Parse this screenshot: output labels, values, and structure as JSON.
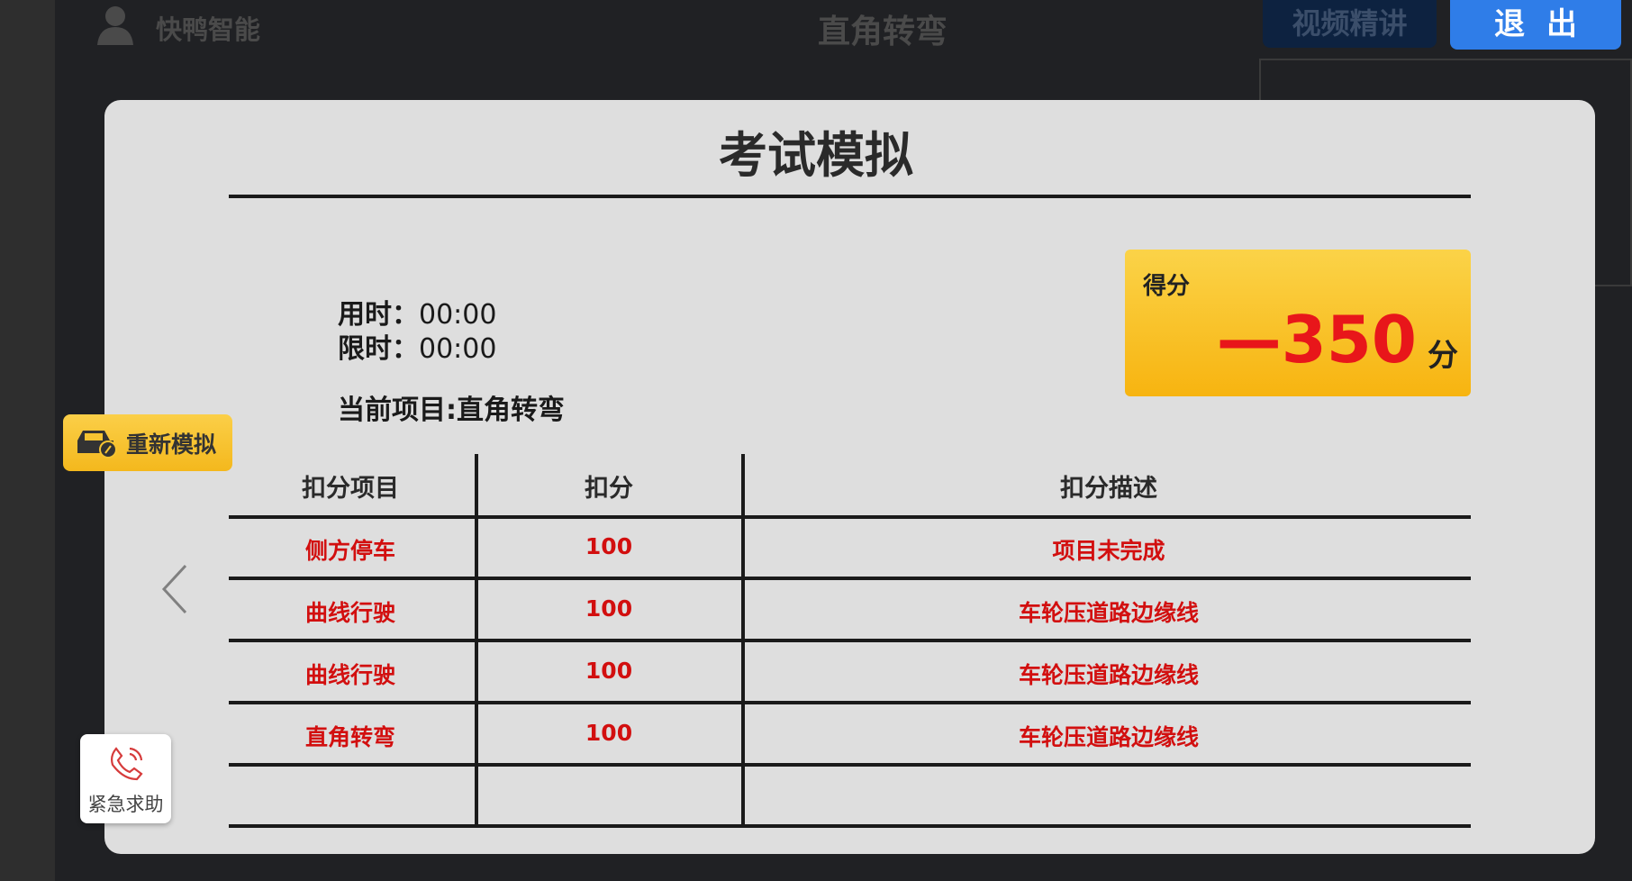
{
  "background": {
    "brand": "快鸭智能",
    "title": "直角转弯",
    "video_button": "视频精讲",
    "exit_button": "退出"
  },
  "modal": {
    "title": "考试模拟",
    "time_used_label": "用时：",
    "time_used": "00:00",
    "time_limit_label": "限时：",
    "time_limit": "00:00",
    "current_item": "当前项目:直角转弯",
    "score": {
      "label": "得分",
      "value": "—350",
      "unit": "分",
      "color": "#e8161a"
    },
    "table": {
      "headers": [
        "扣分项目",
        "扣分",
        "扣分描述"
      ],
      "rows": [
        [
          "侧方停车",
          "100",
          "项目未完成"
        ],
        [
          "曲线行驶",
          "100",
          "车轮压道路边缘线"
        ],
        [
          "曲线行驶",
          "100",
          "车轮压道路边缘线"
        ],
        [
          "直角转弯",
          "100",
          "车轮压道路边缘线"
        ]
      ]
    }
  },
  "retest_button": {
    "label": "重新模拟",
    "icon": "car-icon"
  },
  "sos_button": {
    "label": "紧急求助",
    "icon": "phone-icon"
  },
  "nav": {
    "prev_icon": "chevron-left-icon"
  }
}
